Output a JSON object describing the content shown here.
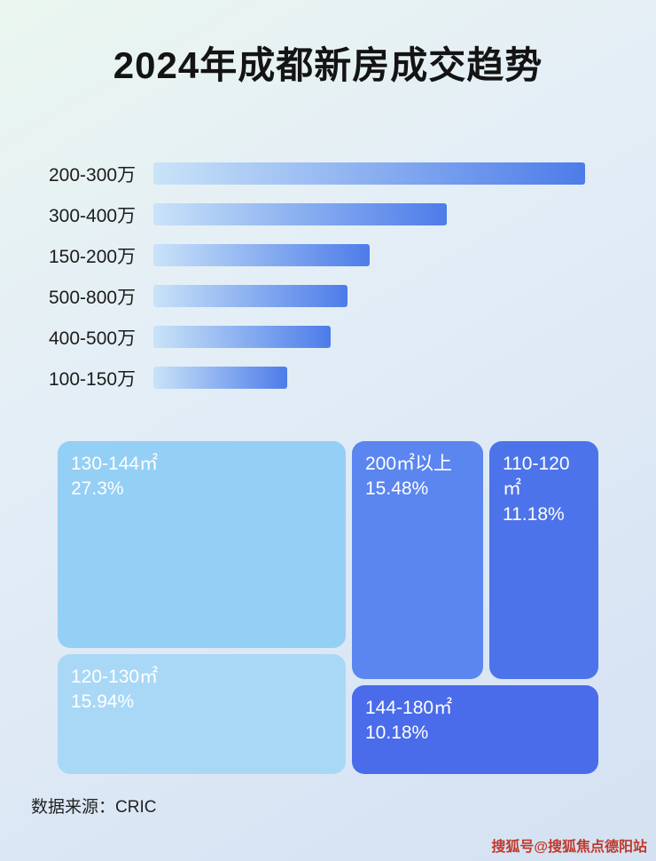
{
  "page": {
    "title": "2024年成都新房成交趋势",
    "source_label": "数据来源：CRIC",
    "watermark": "搜狐号@搜狐焦点德阳站"
  },
  "colors": {
    "bar_start": "#c9e3f8",
    "bar_end": "#4d7ce9",
    "title_color": "#141414",
    "watermark_color": "#c0392b"
  },
  "chart_data": [
    {
      "type": "bar",
      "orientation": "horizontal",
      "title": "2024年成都新房成交趋势",
      "categories": [
        "200-300万",
        "300-400万",
        "150-200万",
        "500-800万",
        "400-500万",
        "100-150万"
      ],
      "values": [
        100,
        68,
        50,
        45,
        41,
        31
      ],
      "value_note": "relative bar lengths as % of longest bar; no numeric axis or data labels shown in image",
      "xlabel": "",
      "ylabel": "",
      "grid": false,
      "legend": false
    },
    {
      "type": "treemap",
      "title": "",
      "items": [
        {
          "label": "130-144㎡",
          "value": 27.3,
          "value_label": "27.3%",
          "color": "#94cff5"
        },
        {
          "label": "200㎡以上",
          "value": 15.48,
          "value_label": "15.48%",
          "color": "#5b85ef"
        },
        {
          "label": "110-120㎡",
          "value": 11.18,
          "value_label": "11.18%",
          "color": "#4d73ea"
        },
        {
          "label": "120-130㎡",
          "value": 15.94,
          "value_label": "15.94%",
          "color": "#a9d8f7"
        },
        {
          "label": "144-180㎡",
          "value": 10.18,
          "value_label": "10.18%",
          "color": "#4a6ceb"
        }
      ]
    }
  ]
}
